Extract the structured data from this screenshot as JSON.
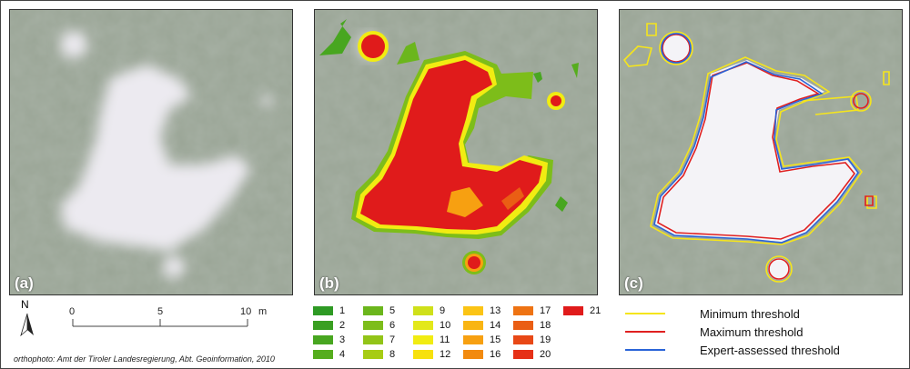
{
  "panels": [
    {
      "label": "(a)"
    },
    {
      "label": "(b)"
    },
    {
      "label": "(c)"
    }
  ],
  "north_label": "N",
  "scale": {
    "ticks": [
      "0",
      "5",
      "10"
    ],
    "unit": "m"
  },
  "credit": "orthophoto: Amt der Tiroler Landesregierung, Abt. Geoinformation, 2010",
  "classes": [
    {
      "label": "1",
      "color": "#2e9a24"
    },
    {
      "label": "2",
      "color": "#3a9f22"
    },
    {
      "label": "3",
      "color": "#48a620"
    },
    {
      "label": "4",
      "color": "#56ad1e"
    },
    {
      "label": "5",
      "color": "#6bb61c"
    },
    {
      "label": "6",
      "color": "#7dbd1a"
    },
    {
      "label": "7",
      "color": "#92c418"
    },
    {
      "label": "8",
      "color": "#a7cc14"
    },
    {
      "label": "9",
      "color": "#cfe01a"
    },
    {
      "label": "10",
      "color": "#e3e81a"
    },
    {
      "label": "11",
      "color": "#f1ec12"
    },
    {
      "label": "12",
      "color": "#f7e10e"
    },
    {
      "label": "13",
      "color": "#fbc415"
    },
    {
      "label": "14",
      "color": "#f9b513"
    },
    {
      "label": "15",
      "color": "#f7a011"
    },
    {
      "label": "16",
      "color": "#f28a0f"
    },
    {
      "label": "17",
      "color": "#ee7313"
    },
    {
      "label": "18",
      "color": "#ea5e14"
    },
    {
      "label": "19",
      "color": "#e84816"
    },
    {
      "label": "20",
      "color": "#e63117"
    },
    {
      "label": "21",
      "color": "#e01b1b"
    }
  ],
  "thresholds": [
    {
      "label": "Minimum threshold",
      "color": "#f5e51c"
    },
    {
      "label": "Maximum threshold",
      "color": "#e02020"
    },
    {
      "label": "Expert-assessed threshold",
      "color": "#2a64d8"
    }
  ]
}
